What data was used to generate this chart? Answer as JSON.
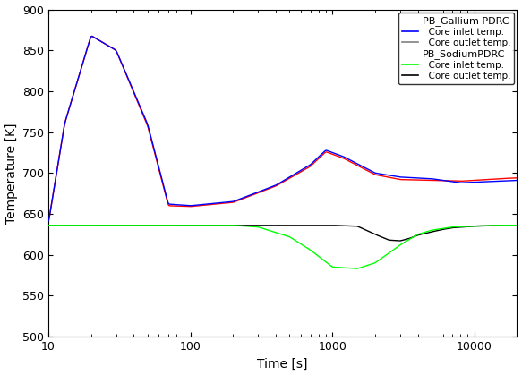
{
  "title": "",
  "xlabel": "Time [s]",
  "ylabel": "Temperature [K]",
  "xlim": [
    10,
    20000
  ],
  "ylim": [
    500,
    900
  ],
  "yticks": [
    500,
    550,
    600,
    650,
    700,
    750,
    800,
    850,
    900
  ],
  "background_color": "#ffffff",
  "legend_title1": "PB_Gallium PDRC",
  "legend_title2": "PB_SodiumPDRC",
  "legend_inlet": "Core inlet temp.",
  "legend_outlet": "Core outlet temp."
}
